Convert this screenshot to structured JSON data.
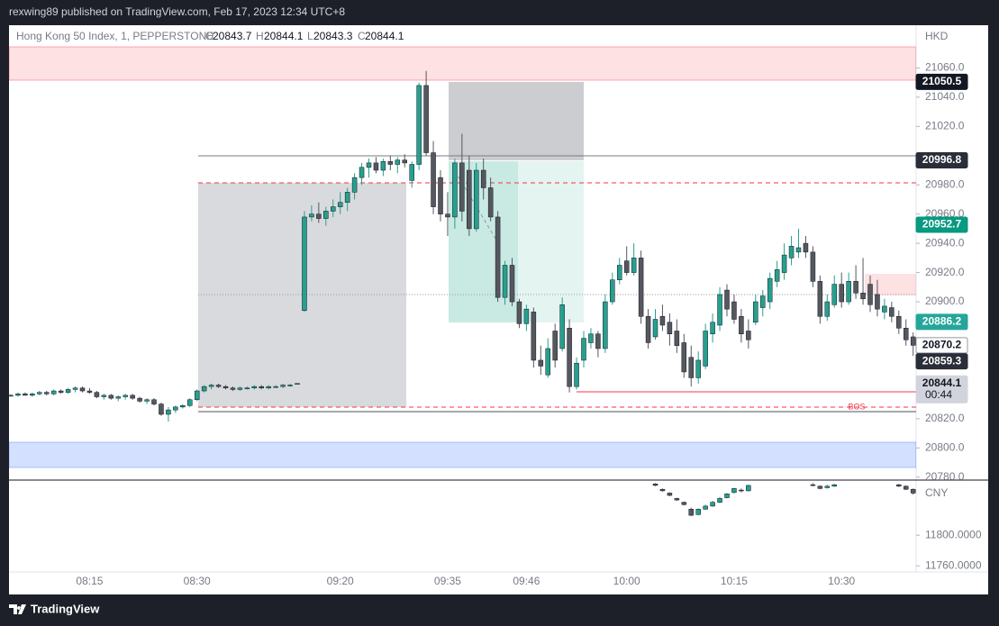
{
  "header": {
    "text": "rexwing89 published on TradingView.com, Feb 17, 2023 12:34 UTC+8"
  },
  "chart_data": {
    "type": "candlestick",
    "symbol": "Hong Kong 50 Index, 1, PEPPERSTONE",
    "ohlc": [
      {
        "key": "O",
        "value": 20843.7
      },
      {
        "key": "H",
        "value": 20844.1
      },
      {
        "key": "L",
        "value": 20843.3
      },
      {
        "key": "C",
        "value": 20844.1
      }
    ],
    "currency": "HKD",
    "up_color": "#26a08e",
    "down_color": "#55585f",
    "ylim": [
      20778,
      21088
    ],
    "yticks": [
      {
        "value": 21060,
        "label": "21060.0"
      },
      {
        "value": 21040,
        "label": "21040.0"
      },
      {
        "value": 21020,
        "label": "21020.0"
      },
      {
        "value": 20980,
        "label": "20980.0"
      },
      {
        "value": 20960,
        "label": "20960.0"
      },
      {
        "value": 20940,
        "label": "20940.0"
      },
      {
        "value": 20920,
        "label": "20920.0"
      },
      {
        "value": 20900,
        "label": "20900.0"
      },
      {
        "value": 20820,
        "label": "20820.0"
      },
      {
        "value": 20800,
        "label": "20800.0"
      },
      {
        "value": 20780,
        "label": "20780.0"
      }
    ],
    "categories": [
      null,
      null,
      null,
      null,
      null,
      null,
      null,
      null,
      null,
      null,
      null,
      "08:15",
      null,
      null,
      null,
      null,
      null,
      null,
      null,
      null,
      null,
      null,
      null,
      null,
      null,
      null,
      "08:30",
      null,
      null,
      null,
      null,
      null,
      null,
      null,
      null,
      null,
      null,
      null,
      null,
      null,
      null,
      null,
      null,
      null,
      null,
      null,
      "09:20",
      null,
      null,
      null,
      null,
      null,
      null,
      null,
      null,
      null,
      null,
      null,
      null,
      null,
      null,
      "09:35",
      null,
      null,
      null,
      null,
      null,
      null,
      null,
      null,
      null,
      null,
      "09:46",
      null,
      null,
      null,
      null,
      null,
      null,
      null,
      null,
      null,
      null,
      null,
      null,
      null,
      "10:00",
      null,
      null,
      null,
      null,
      null,
      null,
      null,
      null,
      null,
      null,
      null,
      null,
      null,
      null,
      "10:15",
      null,
      null,
      null,
      null,
      null,
      null,
      null,
      null,
      null,
      null,
      null,
      null,
      null,
      null,
      "10:30",
      null,
      null,
      null,
      null,
      null,
      null,
      null,
      null,
      null,
      null
    ],
    "candles": [
      [
        20836,
        20837,
        20835,
        20836
      ],
      [
        20836,
        20838,
        20835,
        20837
      ],
      [
        20837,
        20838,
        20836,
        20836
      ],
      [
        20836,
        20838,
        20835,
        20837
      ],
      [
        20837,
        20839,
        20836,
        20838
      ],
      [
        20838,
        20839,
        20836,
        20837
      ],
      [
        20837,
        20840,
        20836,
        20839
      ],
      [
        20839,
        20840,
        20837,
        20838
      ],
      [
        20838,
        20841,
        20837,
        20840
      ],
      [
        20840,
        20842,
        20838,
        20841
      ],
      [
        20841,
        20842,
        20838,
        20839
      ],
      [
        20839,
        20841,
        20837,
        20838
      ],
      [
        20838,
        20839,
        20834,
        20835
      ],
      [
        20835,
        20837,
        20833,
        20836
      ],
      [
        20836,
        20837,
        20833,
        20834
      ],
      [
        20834,
        20836,
        20832,
        20835
      ],
      [
        20835,
        20837,
        20833,
        20836
      ],
      [
        20836,
        20837,
        20833,
        20834
      ],
      [
        20834,
        20835,
        20831,
        20832
      ],
      [
        20832,
        20834,
        20830,
        20833
      ],
      [
        20833,
        20834,
        20829,
        20830
      ],
      [
        20830,
        20831,
        20822,
        20823
      ],
      [
        20823,
        20828,
        20818,
        20826
      ],
      [
        20826,
        20829,
        20824,
        20828
      ],
      [
        20828,
        20830,
        20827,
        20829
      ],
      [
        20829,
        20834,
        20828,
        20833
      ],
      [
        20833,
        20840,
        20832,
        20839
      ],
      [
        20839,
        20843,
        20838,
        20842
      ],
      [
        20842,
        20844,
        20840,
        20843
      ],
      [
        20843,
        20844,
        20841,
        20842
      ],
      [
        20842,
        20843,
        20840,
        20841
      ],
      [
        20841,
        20842,
        20839,
        20840
      ],
      [
        20840,
        20842,
        20839,
        20841
      ],
      [
        20841,
        20842,
        20840,
        20841
      ],
      [
        20841,
        20843,
        20840,
        20842
      ],
      [
        20842,
        20843,
        20840,
        20841
      ],
      [
        20841,
        20843,
        20840,
        20842
      ],
      [
        20842,
        20843,
        20841,
        20842
      ],
      [
        20842,
        20844,
        20841,
        20843
      ],
      [
        20843,
        20844,
        20842,
        20843
      ],
      [
        20843.7,
        20844.1,
        20843.3,
        20844.1
      ],
      [
        20894,
        20962,
        20893,
        20958
      ],
      [
        20958,
        20966,
        20955,
        20960
      ],
      [
        20960,
        20968,
        20954,
        20957
      ],
      [
        20957,
        20965,
        20952,
        20962
      ],
      [
        20962,
        20970,
        20958,
        20965
      ],
      [
        20965,
        20975,
        20960,
        20968
      ],
      [
        20968,
        20978,
        20962,
        20975
      ],
      [
        20975,
        20988,
        20970,
        20985
      ],
      [
        20985,
        20995,
        20980,
        20992
      ],
      [
        20992,
        20998,
        20985,
        20995
      ],
      [
        20995,
        20999,
        20988,
        20990
      ],
      [
        20990,
        20998,
        20986,
        20996
      ],
      [
        20996,
        21000,
        20990,
        20994
      ],
      [
        20994,
        20999,
        20988,
        20997
      ],
      [
        20997,
        21001,
        20992,
        20995
      ],
      [
        20983,
        20996,
        20978,
        20994
      ],
      [
        20994,
        21050,
        20990,
        21048
      ],
      [
        21048,
        21058,
        21000,
        21002
      ],
      [
        21002,
        21010,
        20960,
        20965
      ],
      [
        20985,
        20990,
        20955,
        20960
      ],
      [
        20960,
        20975,
        20945,
        20958
      ],
      [
        20958,
        20998,
        20950,
        20995
      ],
      [
        20995,
        21015,
        20955,
        20962
      ],
      [
        20990,
        21000,
        20945,
        20950
      ],
      [
        20950,
        20995,
        20948,
        20990
      ],
      [
        20990,
        20998,
        20970,
        20978
      ],
      [
        20978,
        20985,
        20955,
        20958
      ],
      [
        20958,
        20962,
        20900,
        20903
      ],
      [
        20903,
        20928,
        20898,
        20925
      ],
      [
        20925,
        20930,
        20897,
        20900
      ],
      [
        20900,
        20902,
        20882,
        20885
      ],
      [
        20885,
        20898,
        20880,
        20895
      ],
      [
        20893,
        20896,
        20855,
        20860
      ],
      [
        20860,
        20870,
        20850,
        20856
      ],
      [
        20850,
        20875,
        20848,
        20868
      ],
      [
        20880,
        20885,
        20855,
        20860
      ],
      [
        20868,
        20903,
        20866,
        20898
      ],
      [
        20882,
        20888,
        20838,
        20842
      ],
      [
        20842,
        20862,
        20840,
        20858
      ],
      [
        20860,
        20880,
        20855,
        20875
      ],
      [
        20872,
        20882,
        20868,
        20878
      ],
      [
        20878,
        20880,
        20862,
        20868
      ],
      [
        20868,
        20905,
        20865,
        20900
      ],
      [
        20900,
        20920,
        20898,
        20915
      ],
      [
        20915,
        20930,
        20912,
        20925
      ],
      [
        20928,
        20938,
        20918,
        20920
      ],
      [
        20920,
        20940,
        20918,
        20930
      ],
      [
        20930,
        20935,
        20885,
        20890
      ],
      [
        20890,
        20895,
        20868,
        20872
      ],
      [
        20876,
        20895,
        20874,
        20888
      ],
      [
        20890,
        20898,
        20880,
        20884
      ],
      [
        20886,
        20892,
        20870,
        20878
      ],
      [
        20880,
        20888,
        20865,
        20870
      ],
      [
        20872,
        20878,
        20848,
        20852
      ],
      [
        20862,
        20870,
        20842,
        20848
      ],
      [
        20848,
        20866,
        20844,
        20860
      ],
      [
        20856,
        20885,
        20854,
        20880
      ],
      [
        20878,
        20892,
        20872,
        20886
      ],
      [
        20884,
        20910,
        20880,
        20905
      ],
      [
        20908,
        20912,
        20890,
        20895
      ],
      [
        20900,
        20905,
        20885,
        20888
      ],
      [
        20890,
        20895,
        20872,
        20878
      ],
      [
        20880,
        20888,
        20868,
        20874
      ],
      [
        20886,
        20905,
        20884,
        20900
      ],
      [
        20896,
        20908,
        20890,
        20904
      ],
      [
        20900,
        20920,
        20895,
        20916
      ],
      [
        20914,
        20928,
        20910,
        20922
      ],
      [
        20920,
        20940,
        20915,
        20932
      ],
      [
        20930,
        20945,
        20925,
        20938
      ],
      [
        20934,
        20950,
        20930,
        20937
      ],
      [
        20940,
        20945,
        20930,
        20934
      ],
      [
        20934,
        20938,
        20910,
        20914
      ],
      [
        20914,
        20918,
        20885,
        20890
      ],
      [
        20890,
        20905,
        20887,
        20900
      ],
      [
        20898,
        20918,
        20896,
        20912
      ],
      [
        20912,
        20920,
        20896,
        20900
      ],
      [
        20900,
        20920,
        20898,
        20914
      ],
      [
        20914,
        20925,
        20902,
        20906
      ],
      [
        20906,
        20930,
        20898,
        20902
      ],
      [
        20912,
        20918,
        20893,
        20898
      ],
      [
        20905,
        20915,
        20890,
        20895
      ],
      [
        20893,
        20902,
        20888,
        20897
      ],
      [
        20896,
        20900,
        20886,
        20890
      ],
      [
        20890,
        20894,
        20878,
        20882
      ],
      [
        20882,
        20888,
        20870,
        20874
      ],
      [
        20876,
        20879,
        20863,
        20870.2
      ]
    ],
    "price_labels": [
      {
        "value": 21050.5,
        "color": "#131722",
        "text_color": "#ffffff"
      },
      {
        "value": 20996.8,
        "color": "#2a2e39",
        "text_color": "#ffffff"
      },
      {
        "value": 20952.7,
        "color": "#089981",
        "text_color": "#ffffff"
      },
      {
        "value": 20886.2,
        "color": "#26a69a",
        "text_color": "#ffffff"
      },
      {
        "value": 20870.2,
        "color": "#ffffff",
        "text_color": "#131722"
      },
      {
        "value": 20859.3,
        "color": "#2a2e39",
        "text_color": "#ffffff"
      },
      {
        "value": 20844.1,
        "color": "#d1d4dc",
        "text_color": "#131722",
        "countdown": "00:44"
      }
    ],
    "annotation": "BOS",
    "lower_pane": {
      "currency": "CNY",
      "ylim": [
        11752,
        11872
      ],
      "yticks": [
        {
          "value": 11800,
          "label": "11800.0000"
        },
        {
          "value": 11760,
          "label": "11760.0000"
        }
      ],
      "x": [
        90,
        91,
        92,
        93,
        94,
        95,
        96,
        97,
        98,
        99,
        100,
        101,
        102,
        103,
        112,
        113,
        114,
        115,
        124,
        125,
        126
      ],
      "candles": [
        [
          11867,
          11868,
          11864,
          11865
        ],
        [
          11860,
          11861,
          11857,
          11858
        ],
        [
          11855,
          11856,
          11851,
          11852
        ],
        [
          11848,
          11849,
          11845,
          11846
        ],
        [
          11843,
          11844,
          11839,
          11840
        ],
        [
          11834,
          11836,
          11825,
          11826
        ],
        [
          11827,
          11835,
          11826,
          11834
        ],
        [
          11834,
          11840,
          11833,
          11838
        ],
        [
          11838,
          11845,
          11837,
          11843
        ],
        [
          11843,
          11850,
          11842,
          11848
        ],
        [
          11849,
          11855,
          11848,
          11854
        ],
        [
          11856,
          11862,
          11854,
          11861
        ],
        [
          11859,
          11861,
          11856,
          11858
        ],
        [
          11858,
          11866,
          11857,
          11865
        ],
        [
          11866,
          11868,
          11864,
          11865
        ],
        [
          11864,
          11865,
          11860,
          11861
        ],
        [
          11862,
          11866,
          11861,
          11864
        ],
        [
          11864,
          11867,
          11863,
          11866
        ],
        [
          11866,
          11867,
          11863,
          11864
        ],
        [
          11864,
          11865,
          11859,
          11860
        ],
        [
          11860,
          11861,
          11853,
          11855
        ]
      ]
    }
  },
  "footer": {
    "brand": "TradingView"
  }
}
